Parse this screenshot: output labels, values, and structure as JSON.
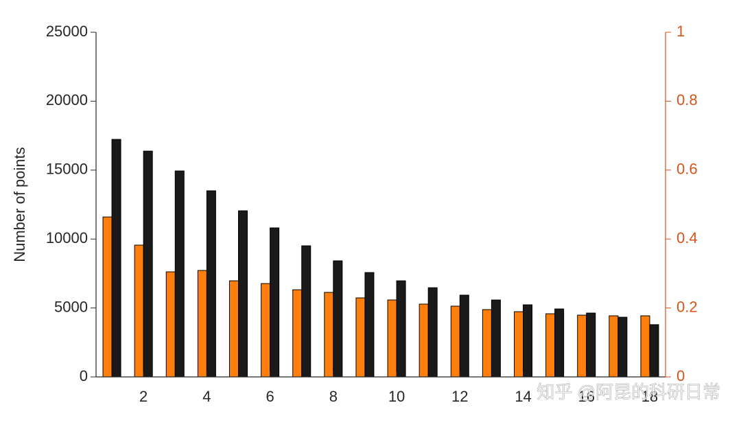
{
  "chart_data": {
    "type": "bar",
    "ylabel": "Number of points",
    "x": [
      1,
      2,
      3,
      4,
      5,
      6,
      7,
      8,
      9,
      10,
      11,
      12,
      13,
      14,
      15,
      16,
      17,
      18
    ],
    "xlim": [
      0.5,
      18.5
    ],
    "xticks": [
      2,
      4,
      6,
      8,
      10,
      12,
      14,
      16,
      18
    ],
    "ylim": [
      0,
      25000
    ],
    "yticks": [
      0,
      5000,
      10000,
      15000,
      20000,
      25000
    ],
    "y2lim": [
      0,
      1
    ],
    "y2ticks": [
      0,
      {
        "value": 0.2,
        "label": "0.2"
      },
      {
        "value": 0.4,
        "label": "0.4"
      },
      {
        "value": 0.6,
        "label": "0.6"
      },
      {
        "value": 0.8,
        "label": "0.8"
      },
      1
    ],
    "y2color": "#d95319",
    "series": [
      {
        "color": "#ff7f0e",
        "values": [
          11600,
          9560,
          7620,
          7720,
          6970,
          6770,
          6320,
          6130,
          5730,
          5580,
          5280,
          5130,
          4880,
          4730,
          4580,
          4480,
          4430,
          4430
        ]
      },
      {
        "color": "#1a1a1a",
        "values": [
          17230,
          16380,
          14940,
          13500,
          12050,
          10810,
          9510,
          8420,
          7570,
          6970,
          6470,
          5930,
          5580,
          5230,
          4930,
          4630,
          4330,
          3790
        ]
      }
    ],
    "watermark": "知乎 @阿昆的科研日常"
  }
}
